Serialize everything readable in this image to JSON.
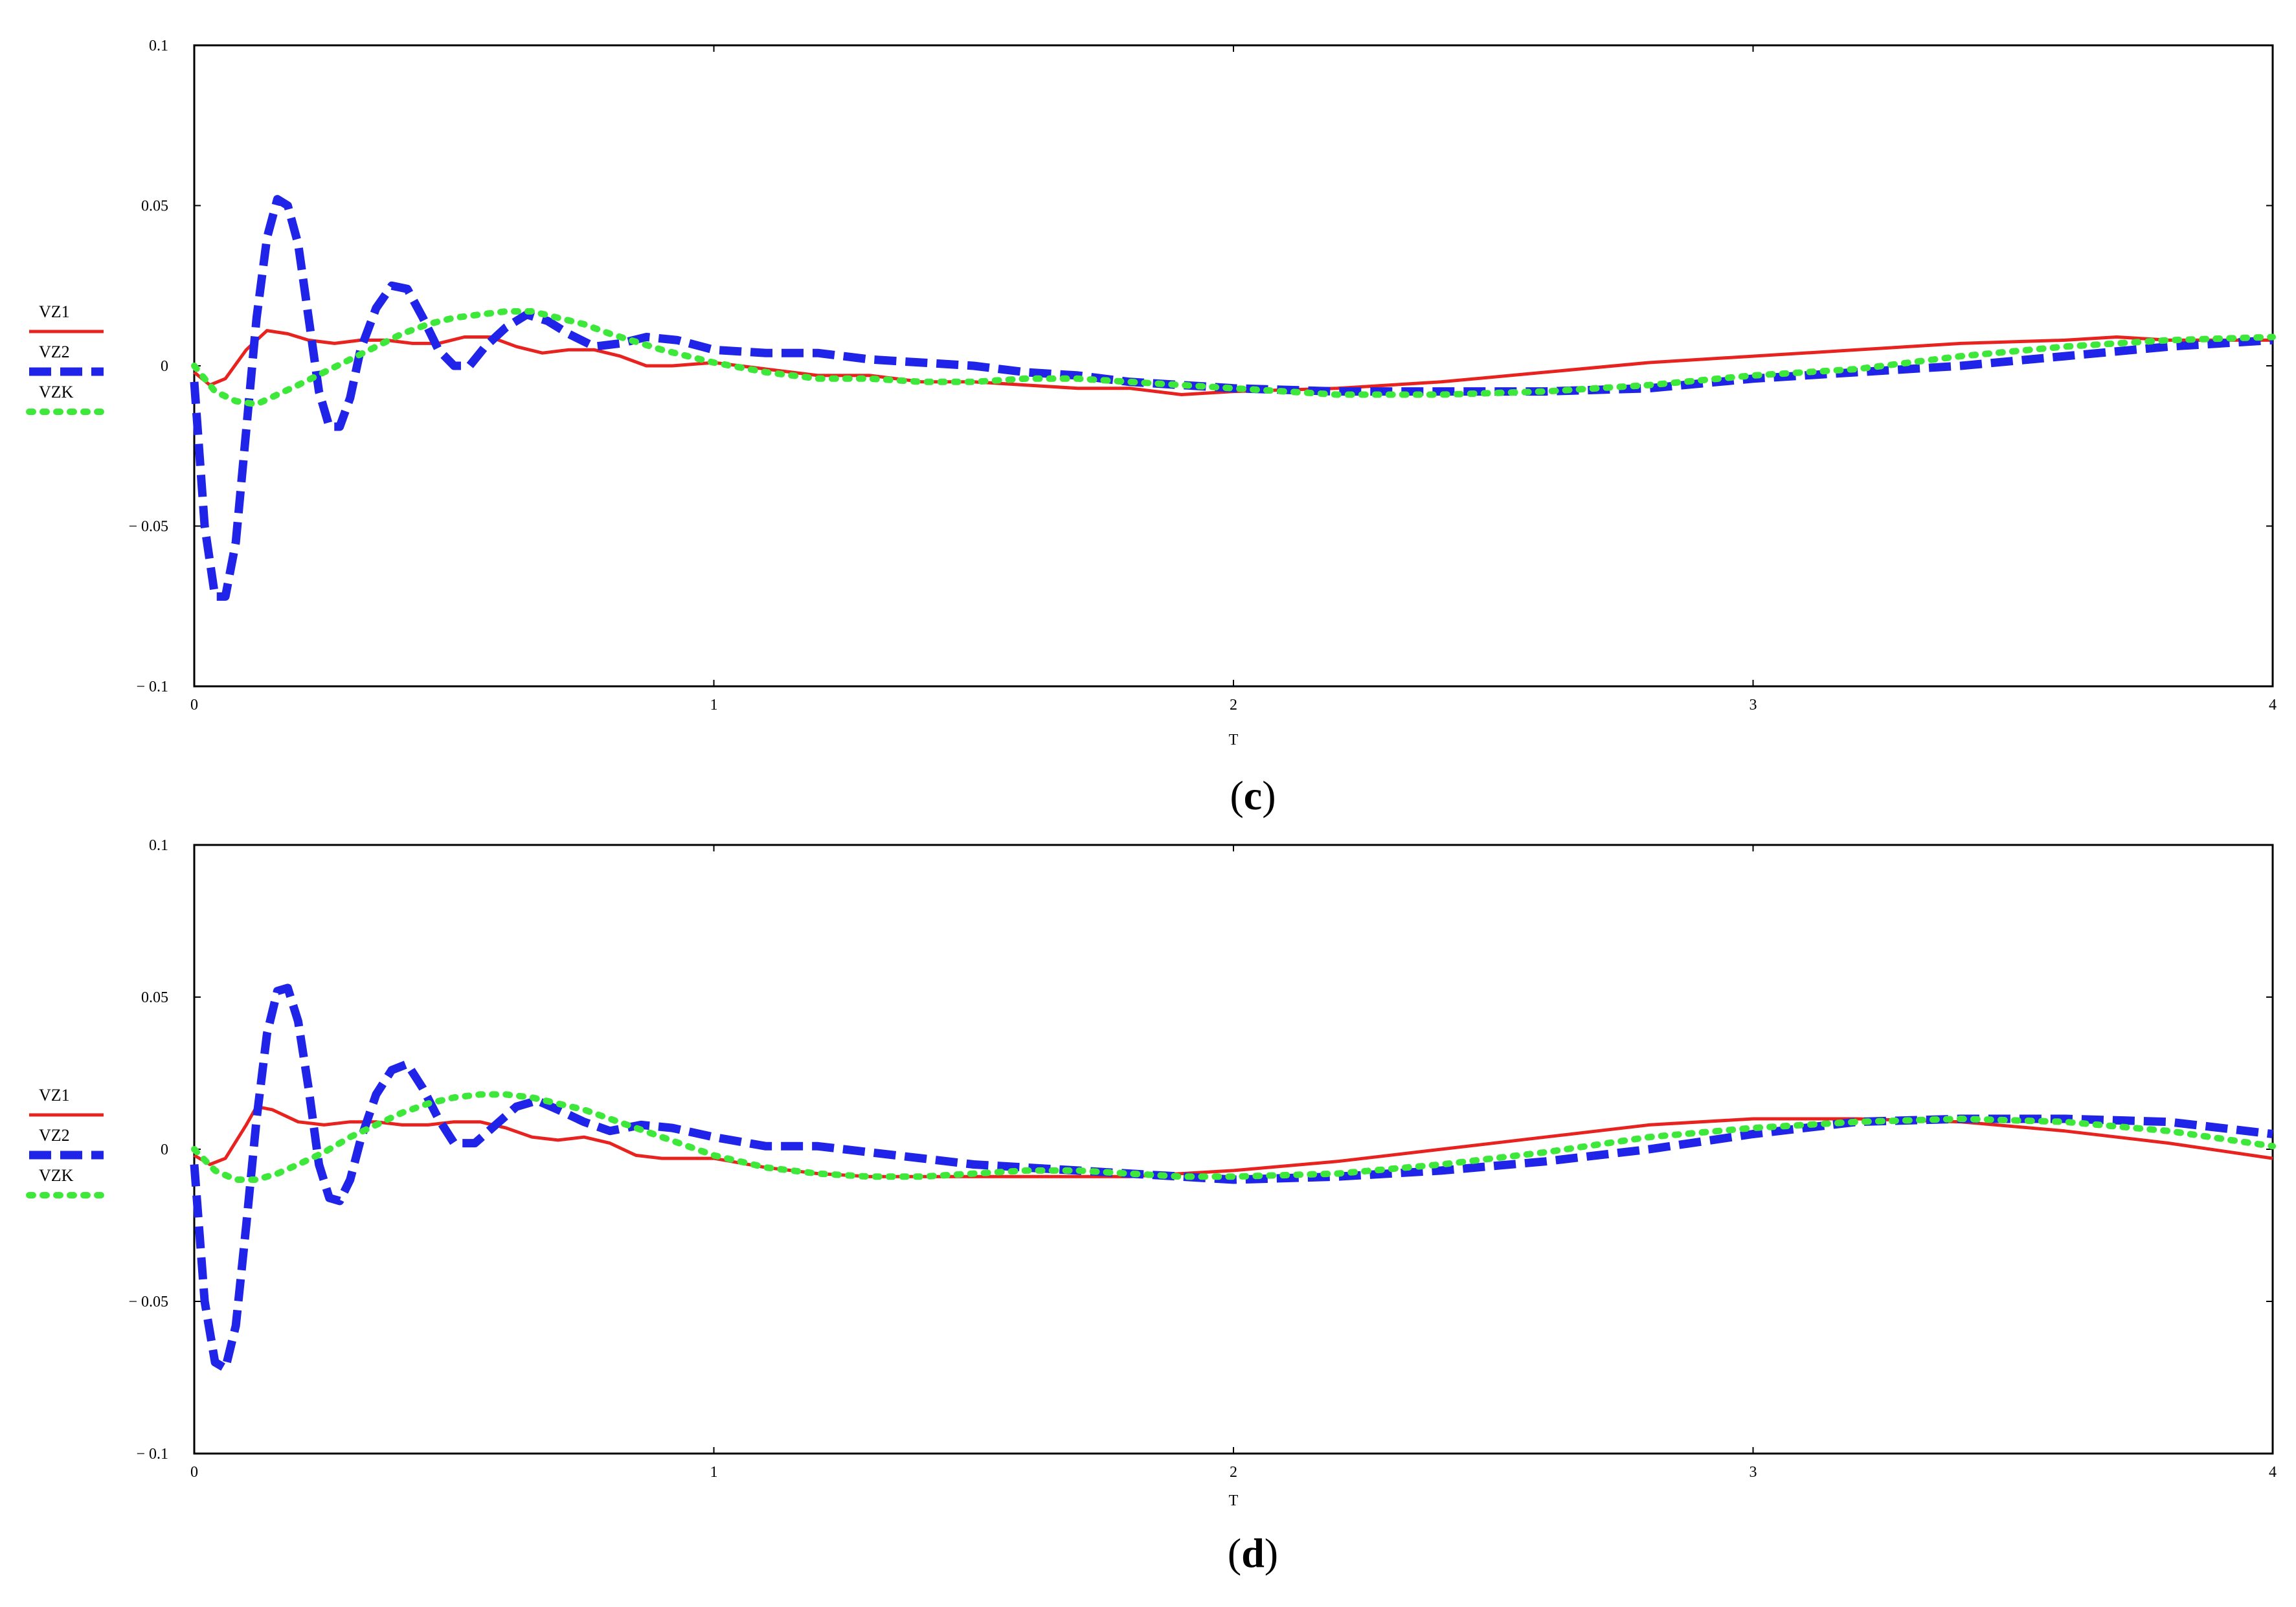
{
  "chart_data": [
    {
      "panel": "c",
      "type": "line",
      "xlabel": "T",
      "ylabel": "",
      "xlim": [
        0,
        4
      ],
      "ylim": [
        -0.1,
        0.1
      ],
      "xticks": [
        "0",
        "1",
        "2",
        "3",
        "4"
      ],
      "yticks": [
        "0.1",
        "0.05",
        "0",
        "−  0.05",
        "−  0.1"
      ],
      "ytick_values": [
        0.1,
        0.05,
        0,
        -0.05,
        -0.1
      ],
      "legend_position": "left",
      "series": [
        {
          "name": "VZ1",
          "color": "#e8231f",
          "style": "solid",
          "x": [
            0,
            0.03,
            0.06,
            0.1,
            0.14,
            0.18,
            0.22,
            0.27,
            0.32,
            0.37,
            0.42,
            0.47,
            0.52,
            0.57,
            0.62,
            0.67,
            0.72,
            0.77,
            0.82,
            0.87,
            0.92,
            1.0,
            1.1,
            1.2,
            1.3,
            1.4,
            1.5,
            1.6,
            1.7,
            1.8,
            1.9,
            2.0,
            2.2,
            2.4,
            2.6,
            2.8,
            3.0,
            3.2,
            3.4,
            3.6,
            3.7,
            3.8,
            4.0
          ],
          "y": [
            -0.002,
            -0.006,
            -0.004,
            0.005,
            0.011,
            0.01,
            0.008,
            0.007,
            0.008,
            0.008,
            0.007,
            0.007,
            0.009,
            0.009,
            0.006,
            0.004,
            0.005,
            0.005,
            0.003,
            0.0,
            0.0,
            0.001,
            -0.001,
            -0.003,
            -0.003,
            -0.005,
            -0.005,
            -0.006,
            -0.007,
            -0.007,
            -0.009,
            -0.008,
            -0.007,
            -0.005,
            -0.002,
            0.001,
            0.003,
            0.005,
            0.007,
            0.008,
            0.009,
            0.008,
            0.008
          ]
        },
        {
          "name": "VZ2",
          "color": "#1f24e8",
          "style": "dashed",
          "x": [
            0,
            0.02,
            0.04,
            0.06,
            0.08,
            0.1,
            0.12,
            0.14,
            0.16,
            0.18,
            0.2,
            0.22,
            0.24,
            0.26,
            0.28,
            0.3,
            0.32,
            0.35,
            0.38,
            0.41,
            0.44,
            0.47,
            0.5,
            0.53,
            0.56,
            0.6,
            0.64,
            0.68,
            0.72,
            0.77,
            0.82,
            0.87,
            0.93,
            1.0,
            1.1,
            1.2,
            1.3,
            1.4,
            1.5,
            1.6,
            1.7,
            1.8,
            1.9,
            2.0,
            2.2,
            2.4,
            2.6,
            2.8,
            3.0,
            3.2,
            3.4,
            3.6,
            3.8,
            4.0
          ],
          "y": [
            -0.005,
            -0.05,
            -0.072,
            -0.072,
            -0.055,
            -0.02,
            0.015,
            0.04,
            0.052,
            0.05,
            0.038,
            0.015,
            -0.008,
            -0.019,
            -0.019,
            -0.01,
            0.005,
            0.018,
            0.025,
            0.024,
            0.015,
            0.005,
            0.0,
            0.0,
            0.006,
            0.012,
            0.016,
            0.014,
            0.01,
            0.006,
            0.007,
            0.009,
            0.008,
            0.005,
            0.004,
            0.004,
            0.002,
            0.001,
            0.0,
            -0.002,
            -0.003,
            -0.005,
            -0.006,
            -0.007,
            -0.008,
            -0.008,
            -0.008,
            -0.007,
            -0.004,
            -0.002,
            0.0,
            0.003,
            0.006,
            0.008
          ]
        },
        {
          "name": "VZK",
          "color": "#3ee83b",
          "style": "dotted",
          "x": [
            0,
            0.04,
            0.08,
            0.12,
            0.16,
            0.2,
            0.25,
            0.3,
            0.35,
            0.4,
            0.45,
            0.5,
            0.55,
            0.6,
            0.65,
            0.7,
            0.75,
            0.8,
            0.9,
            1.0,
            1.1,
            1.2,
            1.3,
            1.4,
            1.5,
            1.6,
            1.7,
            1.8,
            1.9,
            2.0,
            2.2,
            2.4,
            2.6,
            2.8,
            3.0,
            3.2,
            3.4,
            3.6,
            3.8,
            4.0
          ],
          "y": [
            0.0,
            -0.008,
            -0.011,
            -0.012,
            -0.009,
            -0.006,
            -0.002,
            0.002,
            0.006,
            0.01,
            0.013,
            0.015,
            0.016,
            0.017,
            0.017,
            0.015,
            0.013,
            0.01,
            0.005,
            0.001,
            -0.002,
            -0.004,
            -0.004,
            -0.005,
            -0.005,
            -0.004,
            -0.004,
            -0.005,
            -0.006,
            -0.007,
            -0.009,
            -0.009,
            -0.008,
            -0.006,
            -0.003,
            -0.001,
            0.003,
            0.006,
            0.008,
            0.009
          ]
        }
      ]
    },
    {
      "panel": "d",
      "type": "line",
      "xlabel": "T",
      "ylabel": "",
      "xlim": [
        0,
        4
      ],
      "ylim": [
        -0.1,
        0.1
      ],
      "xticks": [
        "0",
        "1",
        "2",
        "3",
        "4"
      ],
      "yticks": [
        "0.1",
        "0.05",
        "0",
        "−  0.05",
        "−  0.1"
      ],
      "ytick_values": [
        0.1,
        0.05,
        0,
        -0.05,
        -0.1
      ],
      "legend_position": "left",
      "series": [
        {
          "name": "VZ1",
          "color": "#e8231f",
          "style": "solid",
          "x": [
            0,
            0.03,
            0.06,
            0.1,
            0.12,
            0.15,
            0.2,
            0.25,
            0.3,
            0.35,
            0.4,
            0.45,
            0.5,
            0.55,
            0.6,
            0.65,
            0.7,
            0.75,
            0.8,
            0.85,
            0.9,
            1.0,
            1.1,
            1.2,
            1.3,
            1.4,
            1.5,
            1.6,
            1.7,
            1.8,
            1.9,
            2.0,
            2.2,
            2.4,
            2.6,
            2.8,
            3.0,
            3.1,
            3.2,
            3.4,
            3.6,
            3.8,
            4.0
          ],
          "y": [
            -0.002,
            -0.005,
            -0.003,
            0.008,
            0.014,
            0.013,
            0.009,
            0.008,
            0.009,
            0.009,
            0.008,
            0.008,
            0.009,
            0.009,
            0.007,
            0.004,
            0.003,
            0.004,
            0.002,
            -0.002,
            -0.003,
            -0.003,
            -0.006,
            -0.008,
            -0.009,
            -0.009,
            -0.009,
            -0.009,
            -0.009,
            -0.009,
            -0.008,
            -0.007,
            -0.004,
            0.0,
            0.004,
            0.008,
            0.01,
            0.01,
            0.01,
            0.009,
            0.006,
            0.002,
            -0.003
          ]
        },
        {
          "name": "VZ2",
          "color": "#1f24e8",
          "style": "dashed",
          "x": [
            0,
            0.02,
            0.04,
            0.06,
            0.08,
            0.1,
            0.12,
            0.14,
            0.16,
            0.18,
            0.2,
            0.22,
            0.24,
            0.26,
            0.28,
            0.3,
            0.32,
            0.35,
            0.38,
            0.41,
            0.44,
            0.47,
            0.5,
            0.54,
            0.58,
            0.62,
            0.66,
            0.7,
            0.75,
            0.8,
            0.86,
            0.92,
            1.0,
            1.1,
            1.2,
            1.3,
            1.4,
            1.5,
            1.6,
            1.7,
            1.8,
            1.9,
            2.0,
            2.2,
            2.4,
            2.6,
            2.8,
            3.0,
            3.2,
            3.4,
            3.6,
            3.8,
            4.0
          ],
          "y": [
            -0.005,
            -0.05,
            -0.07,
            -0.072,
            -0.058,
            -0.025,
            0.01,
            0.038,
            0.052,
            0.053,
            0.042,
            0.02,
            -0.005,
            -0.016,
            -0.017,
            -0.01,
            0.003,
            0.018,
            0.026,
            0.028,
            0.02,
            0.01,
            0.002,
            0.002,
            0.008,
            0.014,
            0.016,
            0.013,
            0.009,
            0.006,
            0.008,
            0.007,
            0.004,
            0.001,
            0.001,
            -0.001,
            -0.003,
            -0.005,
            -0.006,
            -0.007,
            -0.008,
            -0.009,
            -0.01,
            -0.009,
            -0.007,
            -0.004,
            0.0,
            0.005,
            0.009,
            0.01,
            0.01,
            0.009,
            0.005
          ]
        },
        {
          "name": "VZK",
          "color": "#3ee83b",
          "style": "dotted",
          "x": [
            0,
            0.04,
            0.08,
            0.12,
            0.16,
            0.2,
            0.25,
            0.3,
            0.35,
            0.4,
            0.45,
            0.5,
            0.55,
            0.6,
            0.65,
            0.7,
            0.75,
            0.8,
            0.9,
            1.0,
            1.1,
            1.2,
            1.3,
            1.4,
            1.5,
            1.6,
            1.7,
            1.8,
            1.9,
            2.0,
            2.2,
            2.4,
            2.6,
            2.8,
            3.0,
            3.2,
            3.4,
            3.6,
            3.8,
            4.0
          ],
          "y": [
            0.0,
            -0.007,
            -0.01,
            -0.01,
            -0.008,
            -0.005,
            -0.001,
            0.004,
            0.008,
            0.012,
            0.015,
            0.017,
            0.018,
            0.018,
            0.017,
            0.015,
            0.013,
            0.01,
            0.004,
            -0.002,
            -0.006,
            -0.008,
            -0.009,
            -0.009,
            -0.008,
            -0.007,
            -0.007,
            -0.008,
            -0.009,
            -0.009,
            -0.008,
            -0.005,
            -0.001,
            0.004,
            0.007,
            0.009,
            0.01,
            0.009,
            0.006,
            0.001
          ]
        }
      ]
    }
  ]
}
